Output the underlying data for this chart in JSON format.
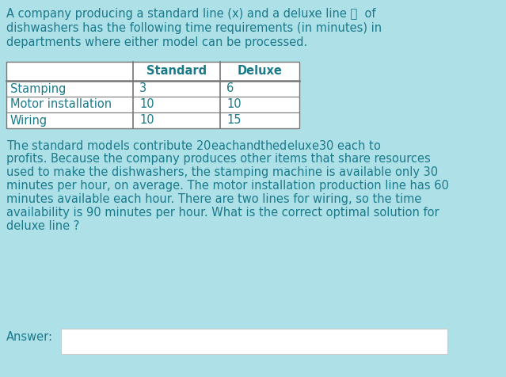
{
  "background_color": "#aee0e8",
  "intro_text_line1": "A company producing a standard line (x) and a deluxe line 👍  of",
  "intro_text_line2": "dishwashers has the following time requirements (in minutes) in",
  "intro_text_line3": "departments where either model can be processed.",
  "table_headers": [
    "",
    "Standard",
    "Deluxe"
  ],
  "table_rows": [
    [
      "Stamping",
      "3",
      "6"
    ],
    [
      "Motor installation",
      "10",
      "10"
    ],
    [
      "Wiring",
      "10",
      "15"
    ]
  ],
  "body_lines": [
    "The standard models contribute $20 each and the deluxe $30 each to",
    "profits. Because the company produces other items that share resources",
    "used to make the dishwashers, the stamping machine is available only 30",
    "minutes per hour, on average. The motor installation production line has 60",
    "minutes available each hour. There are two lines for wiring, so the time",
    "availability is 90 minutes per hour. What is the correct optimal solution for",
    "deluxe line ?"
  ],
  "answer_label": "Answer:",
  "text_color": "#1a7a8a",
  "table_border_color": "#777777",
  "table_bg": "#ffffff",
  "answer_box_color": "#ffffff",
  "answer_box_border": "#cccccc",
  "font_size": 10.5
}
